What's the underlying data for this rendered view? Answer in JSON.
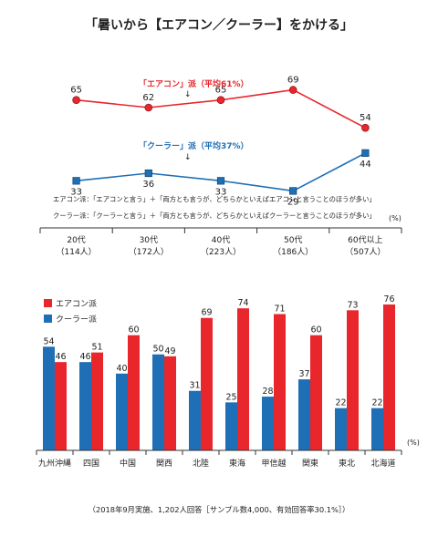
{
  "title": "「暑いから【エアコン／クーラー】をかける」",
  "footnote": "（2018年9月実施、1,202人回答［サンプル数4,000、有効回答率30.1%］）",
  "colors": {
    "aircon": "#e8262c",
    "cooler": "#1f6fb6",
    "axis": "#333333",
    "text": "#222222"
  },
  "chart_data": [
    {
      "type": "line",
      "categories": [
        "20代",
        "30代",
        "40代",
        "50代",
        "60代以上"
      ],
      "category_counts": [
        "（114人）",
        "（172人）",
        "（223人）",
        "（186人）",
        "（507人）"
      ],
      "unit_label": "(%)",
      "series": [
        {
          "name": "「エアコン」派（平均61%）",
          "color": "#e8262c",
          "marker": "circle",
          "values": [
            65,
            62,
            65,
            69,
            54
          ]
        },
        {
          "name": "「クーラー」派（平均37%）",
          "color": "#1f6fb6",
          "marker": "square",
          "values": [
            33,
            36,
            33,
            29,
            44
          ]
        }
      ],
      "ylim": [
        25,
        72
      ],
      "notes": [
        "エアコン派：「エアコンと言う」＋「両方とも言うが、どちらかといえばエアコンと言うことのほうが多い」",
        "クーラー派：「クーラーと言う」＋「両方とも言うが、どちらかといえばクーラーと言うことのほうが多い」"
      ]
    },
    {
      "type": "bar",
      "categories": [
        "九州沖縄",
        "四国",
        "中国",
        "関西",
        "北陸",
        "東海",
        "甲信越",
        "関東",
        "東北",
        "北海道"
      ],
      "unit_label": "(%)",
      "legend_position": "top-left",
      "series": [
        {
          "name": "クーラー派",
          "color": "#1f6fb6",
          "values": [
            54,
            46,
            40,
            50,
            31,
            25,
            28,
            37,
            22,
            22
          ]
        },
        {
          "name": "エアコン派",
          "color": "#e8262c",
          "values": [
            46,
            51,
            60,
            49,
            69,
            74,
            71,
            60,
            73,
            76
          ]
        }
      ],
      "ylim": [
        0,
        80
      ]
    }
  ]
}
